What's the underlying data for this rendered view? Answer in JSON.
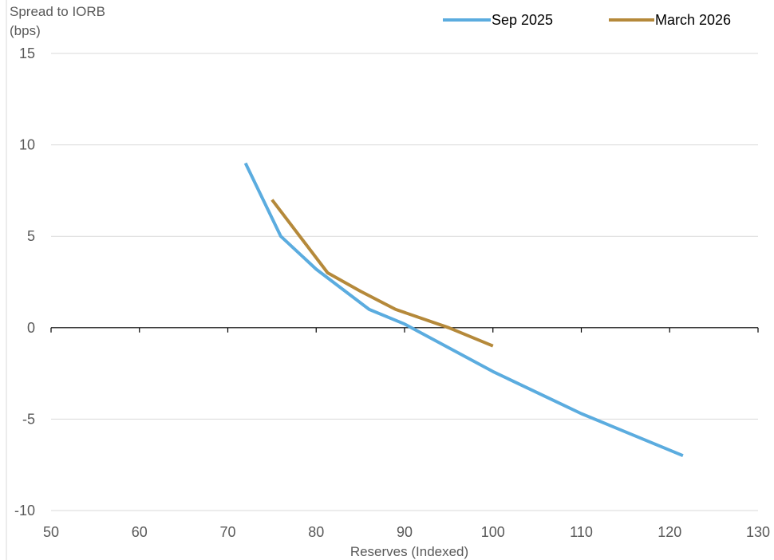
{
  "chart_data": {
    "type": "line",
    "ylabel_line1": "Spread to IORB",
    "ylabel_line2": "(bps)",
    "xlabel": "Reserves (Indexed)",
    "xlim": [
      50,
      130
    ],
    "ylim": [
      -10,
      15
    ],
    "xticks": [
      50,
      60,
      70,
      80,
      90,
      100,
      110,
      120,
      130
    ],
    "yticks": [
      -10,
      -5,
      0,
      5,
      10,
      15
    ],
    "grid": "horizontal",
    "legend_position": "top-right",
    "series": [
      {
        "name": "Sep 2025",
        "color": "#5BACDF",
        "points": [
          [
            72,
            9
          ],
          [
            76,
            5
          ],
          [
            80,
            3.2
          ],
          [
            86,
            1
          ],
          [
            90,
            0.2
          ],
          [
            100,
            -2.4
          ],
          [
            110,
            -4.7
          ],
          [
            121.5,
            -7
          ]
        ]
      },
      {
        "name": "March 2026",
        "color": "#B5893A",
        "points": [
          [
            75,
            7
          ],
          [
            81.3,
            3
          ],
          [
            85,
            2
          ],
          [
            89,
            1
          ],
          [
            95,
            0
          ],
          [
            100,
            -1
          ]
        ]
      }
    ]
  }
}
